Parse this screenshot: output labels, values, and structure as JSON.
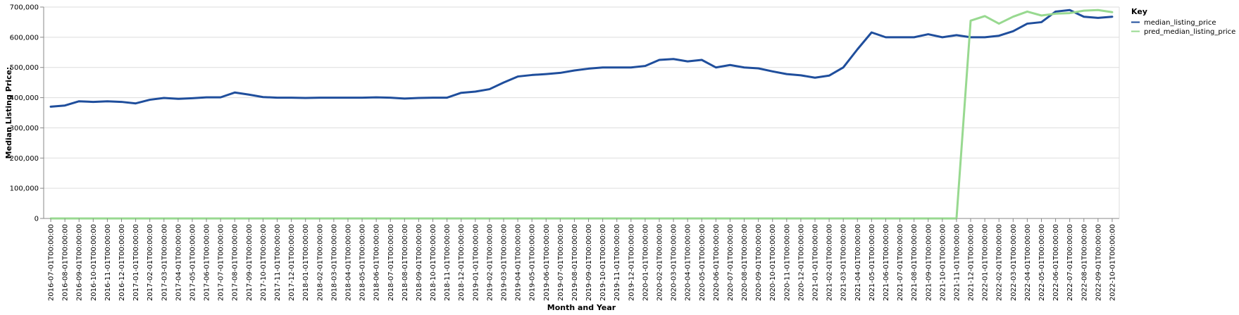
{
  "chart_data": {
    "type": "line",
    "title": "",
    "xlabel": "Month and Year",
    "ylabel": "Median Listing Price:",
    "ylim": [
      0,
      700000
    ],
    "y_ticks": [
      0,
      100000,
      200000,
      300000,
      400000,
      500000,
      600000,
      700000
    ],
    "y_tick_labels": [
      "0",
      "100,000",
      "200,000",
      "300,000",
      "400,000",
      "500,000",
      "600,000",
      "700,000"
    ],
    "grid": true,
    "legend": {
      "title": "Key",
      "placement": "top-right"
    },
    "x": [
      "2016-07-01T00:00:00",
      "2016-08-01T00:00:00",
      "2016-09-01T00:00:00",
      "2016-10-01T00:00:00",
      "2016-11-01T00:00:00",
      "2016-12-01T00:00:00",
      "2017-01-01T00:00:00",
      "2017-02-01T00:00:00",
      "2017-03-01T00:00:00",
      "2017-04-01T00:00:00",
      "2017-05-01T00:00:00",
      "2017-06-01T00:00:00",
      "2017-07-01T00:00:00",
      "2017-08-01T00:00:00",
      "2017-09-01T00:00:00",
      "2017-10-01T00:00:00",
      "2017-11-01T00:00:00",
      "2017-12-01T00:00:00",
      "2018-01-01T00:00:00",
      "2018-02-01T00:00:00",
      "2018-03-01T00:00:00",
      "2018-04-01T00:00:00",
      "2018-05-01T00:00:00",
      "2018-06-01T00:00:00",
      "2018-07-01T00:00:00",
      "2018-08-01T00:00:00",
      "2018-09-01T00:00:00",
      "2018-10-01T00:00:00",
      "2018-11-01T00:00:00",
      "2018-12-01T00:00:00",
      "2019-01-01T00:00:00",
      "2019-02-01T00:00:00",
      "2019-03-01T00:00:00",
      "2019-04-01T00:00:00",
      "2019-05-01T00:00:00",
      "2019-06-01T00:00:00",
      "2019-07-01T00:00:00",
      "2019-08-01T00:00:00",
      "2019-09-01T00:00:00",
      "2019-10-01T00:00:00",
      "2019-11-01T00:00:00",
      "2019-12-01T00:00:00",
      "2020-01-01T00:00:00",
      "2020-02-01T00:00:00",
      "2020-03-01T00:00:00",
      "2020-04-01T00:00:00",
      "2020-05-01T00:00:00",
      "2020-06-01T00:00:00",
      "2020-07-01T00:00:00",
      "2020-08-01T00:00:00",
      "2020-09-01T00:00:00",
      "2020-10-01T00:00:00",
      "2020-11-01T00:00:00",
      "2020-12-01T00:00:00",
      "2021-01-01T00:00:00",
      "2021-02-01T00:00:00",
      "2021-03-01T00:00:00",
      "2021-04-01T00:00:00",
      "2021-05-01T00:00:00",
      "2021-06-01T00:00:00",
      "2021-07-01T00:00:00",
      "2021-08-01T00:00:00",
      "2021-09-01T00:00:00",
      "2021-10-01T00:00:00",
      "2021-11-01T00:00:00",
      "2021-12-01T00:00:00",
      "2022-01-01T00:00:00",
      "2022-02-01T00:00:00",
      "2022-03-01T00:00:00",
      "2022-04-01T00:00:00",
      "2022-05-01T00:00:00",
      "2022-06-01T00:00:00",
      "2022-07-01T00:00:00",
      "2022-08-01T00:00:00",
      "2022-09-01T00:00:00",
      "2022-10-01T00:00:00"
    ],
    "series": [
      {
        "name": "median_listing_price",
        "color": "#1f4e9c",
        "values": [
          370000,
          374000,
          388000,
          386000,
          388000,
          386000,
          381000,
          393000,
          399000,
          396000,
          398000,
          401000,
          401000,
          417000,
          410000,
          402000,
          400000,
          400000,
          399000,
          400000,
          400000,
          400000,
          400000,
          401000,
          400000,
          397000,
          399000,
          400000,
          400000,
          416000,
          420000,
          428000,
          450000,
          470000,
          475000,
          478000,
          482000,
          490000,
          496000,
          500000,
          500000,
          500000,
          505000,
          525000,
          528000,
          520000,
          525000,
          500000,
          508000,
          500000,
          497000,
          487000,
          478000,
          474000,
          466000,
          473000,
          500000,
          560000,
          616000,
          600000,
          600000,
          600000,
          610000,
          600000,
          607000,
          600000,
          600000,
          605000,
          620000,
          645000,
          650000,
          685000,
          690000,
          668000,
          664000,
          668000
        ]
      },
      {
        "name": "pred_median_listing_price",
        "color": "#98d990",
        "values": [
          0,
          0,
          0,
          0,
          0,
          0,
          0,
          0,
          0,
          0,
          0,
          0,
          0,
          0,
          0,
          0,
          0,
          0,
          0,
          0,
          0,
          0,
          0,
          0,
          0,
          0,
          0,
          0,
          0,
          0,
          0,
          0,
          0,
          0,
          0,
          0,
          0,
          0,
          0,
          0,
          0,
          0,
          0,
          0,
          0,
          0,
          0,
          0,
          0,
          0,
          0,
          0,
          0,
          0,
          0,
          0,
          0,
          0,
          0,
          0,
          0,
          0,
          0,
          0,
          0,
          655000,
          670000,
          645000,
          668000,
          685000,
          672000,
          678000,
          680000,
          688000,
          690000,
          683000
        ]
      }
    ]
  }
}
